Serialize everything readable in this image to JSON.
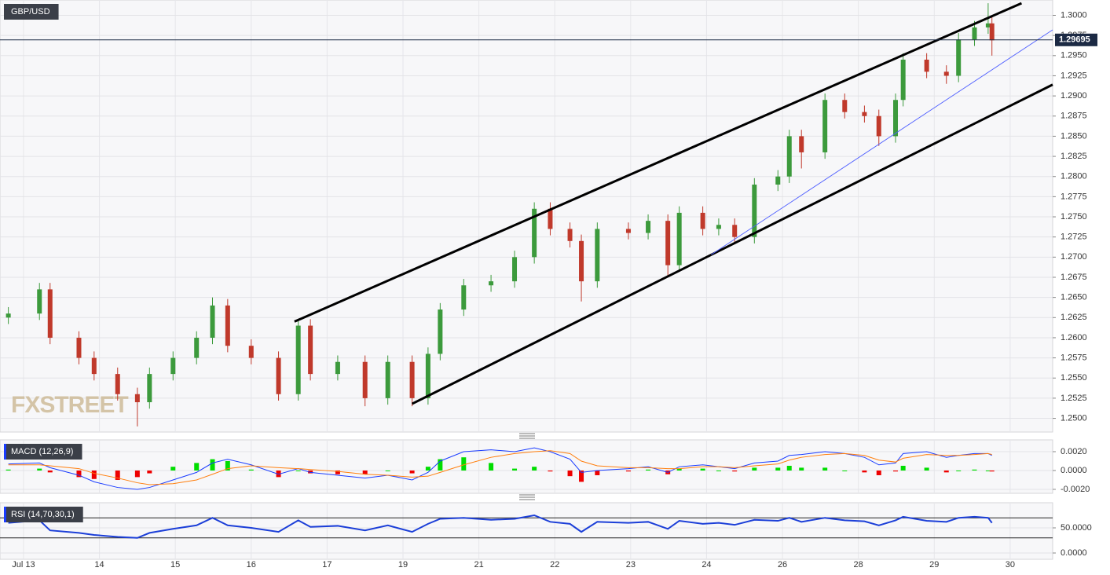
{
  "chart_data": [
    {
      "type": "candlestick",
      "title": "GBP/USD",
      "watermark": "FXSTREET",
      "x": [
        -0.2,
        0.21,
        0.35,
        0.73,
        0.93,
        1.24,
        1.5,
        1.66,
        1.97,
        2.28,
        2.49,
        2.69,
        3.0,
        3.36,
        3.62,
        3.78,
        4.14,
        4.5,
        4.8,
        5.12,
        5.33,
        5.49,
        5.8,
        6.16,
        6.47,
        6.73,
        6.94,
        7.2,
        7.35,
        7.56,
        7.97,
        8.23,
        8.49,
        8.64,
        8.95,
        9.16,
        9.37,
        9.63,
        9.94,
        10.09,
        10.25,
        10.56,
        10.82,
        11.08,
        11.27,
        11.49,
        11.59,
        11.9,
        12.16,
        12.32,
        12.53,
        12.71,
        12.76
      ],
      "open": [
        1.2625,
        1.263,
        1.266,
        1.26,
        1.2575,
        1.2555,
        1.253,
        1.252,
        1.2555,
        1.2575,
        1.26,
        1.264,
        1.259,
        1.2575,
        1.253,
        1.2615,
        1.2555,
        1.257,
        1.2525,
        1.257,
        1.2525,
        1.258,
        1.2635,
        1.2665,
        1.267,
        1.27,
        1.276,
        1.2735,
        1.272,
        1.267,
        1.2735,
        1.273,
        1.2745,
        1.269,
        1.2755,
        1.2735,
        1.274,
        1.2725,
        1.279,
        1.28,
        1.285,
        1.283,
        1.2895,
        1.288,
        1.2875,
        1.285,
        1.2895,
        1.2945,
        1.293,
        1.2925,
        1.297,
        1.2985,
        1.299
      ],
      "high": [
        1.2638,
        1.2668,
        1.2668,
        1.2608,
        1.2583,
        1.2563,
        1.2538,
        1.2563,
        1.2583,
        1.2608,
        1.265,
        1.2648,
        1.2598,
        1.2583,
        1.2623,
        1.2623,
        1.2578,
        1.2578,
        1.2578,
        1.2578,
        1.2588,
        1.2643,
        1.2673,
        1.2678,
        1.2708,
        1.2768,
        1.2768,
        1.2743,
        1.2728,
        1.2743,
        1.2743,
        1.2753,
        1.2753,
        1.2763,
        1.2763,
        1.2748,
        1.2748,
        1.2798,
        1.2808,
        1.2858,
        1.2858,
        1.2903,
        1.2903,
        1.2888,
        1.2883,
        1.2903,
        1.2953,
        1.2953,
        1.2938,
        1.2978,
        1.2993,
        1.3015,
        1.2998
      ],
      "low": [
        1.2617,
        1.2622,
        1.2592,
        1.2567,
        1.2547,
        1.2522,
        1.249,
        1.2512,
        1.2547,
        1.2567,
        1.2592,
        1.2582,
        1.2567,
        1.2522,
        1.2522,
        1.2547,
        1.2547,
        1.2515,
        1.2517,
        1.2515,
        1.2517,
        1.2572,
        1.2627,
        1.2657,
        1.2662,
        1.2692,
        1.2727,
        1.2712,
        1.2645,
        1.2662,
        1.2722,
        1.2722,
        1.2675,
        1.2682,
        1.2727,
        1.2727,
        1.2717,
        1.2717,
        1.2782,
        1.2792,
        1.281,
        1.2822,
        1.2872,
        1.2867,
        1.2838,
        1.2842,
        1.2887,
        1.2922,
        1.2915,
        1.2917,
        1.2962,
        1.2977,
        1.295
      ],
      "close": [
        1.263,
        1.266,
        1.26,
        1.2575,
        1.2555,
        1.253,
        1.252,
        1.2555,
        1.2575,
        1.26,
        1.264,
        1.259,
        1.2575,
        1.253,
        1.2615,
        1.2555,
        1.257,
        1.2525,
        1.257,
        1.2525,
        1.258,
        1.2635,
        1.2665,
        1.267,
        1.27,
        1.276,
        1.2735,
        1.272,
        1.267,
        1.2735,
        1.273,
        1.2745,
        1.269,
        1.2755,
        1.2735,
        1.274,
        1.2725,
        1.279,
        1.28,
        1.285,
        1.283,
        1.2895,
        1.288,
        1.2875,
        1.285,
        1.2895,
        1.2945,
        1.293,
        1.2925,
        1.297,
        1.2985,
        1.299,
        1.2969
      ],
      "up_color": "#3c9a3c",
      "down_color": "#c0392b",
      "xlim": [
        -0.31,
        13.56
      ],
      "ylim": [
        1.2483,
        1.3019
      ],
      "yticks": [
        {
          "value": 1.25,
          "label": "1.2500"
        },
        {
          "value": 1.2525,
          "label": "1.2525"
        },
        {
          "value": 1.255,
          "label": "1.2550"
        },
        {
          "value": 1.2575,
          "label": "1.2575"
        },
        {
          "value": 1.26,
          "label": "1.2600"
        },
        {
          "value": 1.2625,
          "label": "1.2625"
        },
        {
          "value": 1.265,
          "label": "1.2650"
        },
        {
          "value": 1.2675,
          "label": "1.2675"
        },
        {
          "value": 1.27,
          "label": "1.2700"
        },
        {
          "value": 1.2725,
          "label": "1.2725"
        },
        {
          "value": 1.275,
          "label": "1.2750"
        },
        {
          "value": 1.2775,
          "label": "1.2775"
        },
        {
          "value": 1.28,
          "label": "1.2800"
        },
        {
          "value": 1.2825,
          "label": "1.2825"
        },
        {
          "value": 1.285,
          "label": "1.2850"
        },
        {
          "value": 1.2875,
          "label": "1.2875"
        },
        {
          "value": 1.29,
          "label": "1.2900"
        },
        {
          "value": 1.2925,
          "label": "1.2925"
        },
        {
          "value": 1.295,
          "label": "1.2950"
        },
        {
          "value": 1.2975,
          "label": "1.2975"
        },
        {
          "value": 1.3,
          "label": "1.3000"
        }
      ],
      "grid": true,
      "last_price": 1.29695,
      "trendlines": [
        {
          "points": [
            [
              3.57,
              1.262
            ],
            [
              13.15,
              1.3015
            ]
          ],
          "color": "#000000"
        },
        {
          "points": [
            [
              5.12,
              1.2518
            ],
            [
              13.56,
              1.2914
            ]
          ],
          "color": "#000000"
        },
        {
          "points": [
            [
              9.06,
              1.2703
            ],
            [
              13.56,
              1.2982
            ]
          ],
          "color": "#5060ff"
        }
      ]
    },
    {
      "type": "combo",
      "title": "MACD (12,26,9)",
      "histogram": {
        "values": [
          0.0001,
          0.0002,
          -0.0002,
          -0.0007,
          -0.0009,
          -0.001,
          -0.0007,
          -0.0003,
          0.0004,
          0.0008,
          0.0012,
          0.001,
          0.0001,
          -0.0007,
          0,
          -0.0003,
          -0.0004,
          -0.0004,
          0,
          -0.0003,
          0.0004,
          0.0012,
          0.0014,
          0.0008,
          0.0002,
          0.0004,
          -0.0001,
          -0.0006,
          -0.0012,
          -0.0005,
          -0.0001,
          0.0001,
          -0.0004,
          0.0002,
          0.0002,
          0,
          -0.0001,
          0.0003,
          0.0003,
          0.0005,
          0.0003,
          0.0003,
          0,
          -0.0002,
          -0.0005,
          -0.0001,
          0.0005,
          0.0003,
          -0.0002,
          0,
          0.0001,
          0,
          -0.0001
        ],
        "up_color": "#00dd00",
        "down_color": "#ee0000"
      },
      "series": [
        {
          "color": "#1a3cff",
          "values": [
            0.0007,
            0.0008,
            0.0003,
            -0.0005,
            -0.0012,
            -0.0018,
            -0.002,
            -0.0018,
            -0.001,
            -0.0002,
            0.0008,
            0.0012,
            0.0006,
            -0.0004,
            0.0002,
            -0.0002,
            -0.0005,
            -0.0008,
            -0.0005,
            -0.001,
            -0.0002,
            0.001,
            0.002,
            0.0022,
            0.002,
            0.0024,
            0.002,
            0.0012,
            -0.0002,
            0,
            0.0002,
            0.0004,
            -0.0002,
            0.0004,
            0.0006,
            0.0004,
            0.0002,
            0.0008,
            0.001,
            0.0016,
            0.0017,
            0.002,
            0.0018,
            0.0014,
            0.0006,
            0.0008,
            0.0018,
            0.002,
            0.0014,
            0.0016,
            0.0018,
            0.0018,
            0.0016
          ]
        },
        {
          "color": "#ff7f0e",
          "values": [
            0.0006,
            0.0006,
            0.0005,
            0.0002,
            -0.0003,
            -0.0008,
            -0.0013,
            -0.0015,
            -0.0014,
            -0.001,
            -0.0004,
            0.0002,
            0.0005,
            0.0003,
            0.0002,
            0.0001,
            -0.0001,
            -0.0004,
            -0.0005,
            -0.0007,
            -0.0006,
            -0.0002,
            0.0006,
            0.0014,
            0.0018,
            0.002,
            0.0021,
            0.0018,
            0.001,
            0.0005,
            0.0003,
            0.0003,
            0.0002,
            0.0002,
            0.0004,
            0.0004,
            0.0003,
            0.0005,
            0.0007,
            0.0011,
            0.0014,
            0.0017,
            0.0018,
            0.0016,
            0.0011,
            0.0009,
            0.0013,
            0.0017,
            0.0016,
            0.0016,
            0.0017,
            0.0018,
            0.0017
          ]
        }
      ],
      "xlim": [
        -0.31,
        13.56
      ],
      "ylim": [
        -0.00242,
        0.00325
      ],
      "yticks": [
        {
          "value": 0.002,
          "label": "0.0020"
        },
        {
          "value": 0,
          "label": "0.0000"
        },
        {
          "value": -0.002,
          "label": "-0.0020"
        }
      ]
    },
    {
      "type": "line",
      "title": "RSI (14,70,30,1)",
      "values": [
        60,
        65,
        45,
        40,
        36,
        32,
        30,
        40,
        48,
        55,
        70,
        55,
        50,
        42,
        65,
        52,
        54,
        45,
        55,
        42,
        58,
        68,
        70,
        66,
        68,
        75,
        62,
        58,
        42,
        62,
        60,
        62,
        48,
        64,
        58,
        60,
        56,
        66,
        64,
        70,
        62,
        70,
        65,
        63,
        55,
        65,
        72,
        64,
        62,
        70,
        72,
        70,
        60
      ],
      "color": "#1c3fd8",
      "levels": [
        70,
        30
      ],
      "xlim": [
        -0.31,
        13.56
      ],
      "ylim": [
        -12.5,
        100
      ],
      "yticks": [
        {
          "value": 50,
          "label": "50.0000"
        },
        {
          "value": 0,
          "label": "0.0000"
        }
      ],
      "xticks": [
        {
          "value": 0,
          "label": "Jul 13"
        },
        {
          "value": 1,
          "label": "14"
        },
        {
          "value": 2,
          "label": "15"
        },
        {
          "value": 3,
          "label": "16"
        },
        {
          "value": 4,
          "label": "17"
        },
        {
          "value": 5,
          "label": "19"
        },
        {
          "value": 6,
          "label": "21"
        },
        {
          "value": 7,
          "label": "22"
        },
        {
          "value": 8,
          "label": "23"
        },
        {
          "value": 9,
          "label": "24"
        },
        {
          "value": 10,
          "label": "26"
        },
        {
          "value": 11,
          "label": "28"
        },
        {
          "value": 12,
          "label": "29"
        },
        {
          "value": 13,
          "label": "30"
        }
      ]
    }
  ]
}
